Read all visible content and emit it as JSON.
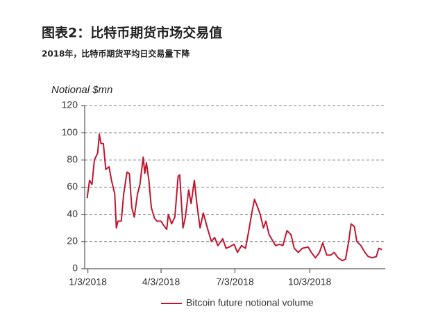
{
  "chart_data": {
    "type": "line",
    "title": "图表2：比特币期货市场交易值",
    "subtitle": "2018年，比特币期货平均日交易量下降",
    "y_label": "Notional $mn",
    "x": [
      "2018-01-02",
      "2018-01-05",
      "2018-01-08",
      "2018-01-11",
      "2018-01-15",
      "2018-01-17",
      "2018-01-19",
      "2018-01-22",
      "2018-01-25",
      "2018-01-29",
      "2018-02-01",
      "2018-02-05",
      "2018-02-07",
      "2018-02-09",
      "2018-02-13",
      "2018-02-16",
      "2018-02-20",
      "2018-02-23",
      "2018-02-26",
      "2018-03-01",
      "2018-03-05",
      "2018-03-08",
      "2018-03-12",
      "2018-03-14",
      "2018-03-16",
      "2018-03-19",
      "2018-03-22",
      "2018-03-26",
      "2018-03-29",
      "2018-04-03",
      "2018-04-06",
      "2018-04-10",
      "2018-04-12",
      "2018-04-16",
      "2018-04-20",
      "2018-04-24",
      "2018-04-26",
      "2018-04-30",
      "2018-05-03",
      "2018-05-07",
      "2018-05-10",
      "2018-05-14",
      "2018-05-17",
      "2018-05-21",
      "2018-05-25",
      "2018-05-30",
      "2018-06-04",
      "2018-06-08",
      "2018-06-12",
      "2018-06-18",
      "2018-06-22",
      "2018-06-26",
      "2018-07-02",
      "2018-07-06",
      "2018-07-11",
      "2018-07-16",
      "2018-07-20",
      "2018-07-24",
      "2018-07-27",
      "2018-07-31",
      "2018-08-03",
      "2018-08-07",
      "2018-08-10",
      "2018-08-14",
      "2018-08-17",
      "2018-08-22",
      "2018-08-27",
      "2018-08-31",
      "2018-09-05",
      "2018-09-10",
      "2018-09-14",
      "2018-09-19",
      "2018-09-24",
      "2018-10-01",
      "2018-10-05",
      "2018-10-10",
      "2018-10-15",
      "2018-10-19",
      "2018-10-24",
      "2018-10-29",
      "2018-11-02",
      "2018-11-07",
      "2018-11-12",
      "2018-11-16",
      "2018-11-20",
      "2018-11-23",
      "2018-11-27",
      "2018-11-30",
      "2018-12-05",
      "2018-12-10",
      "2018-12-14",
      "2018-12-19",
      "2018-12-24",
      "2018-12-27",
      "2018-12-31"
    ],
    "series": [
      {
        "name": "Bitcoin future notional volume",
        "color": "#c0152f",
        "values": [
          52,
          65,
          62,
          80,
          85,
          99,
          92,
          92,
          73,
          75,
          65,
          55,
          30,
          35,
          35,
          55,
          71,
          70,
          45,
          38,
          55,
          62,
          82,
          70,
          78,
          65,
          45,
          37,
          35,
          35,
          32,
          29,
          40,
          33,
          38,
          68,
          69,
          30,
          38,
          58,
          48,
          65,
          48,
          30,
          41,
          30,
          20,
          23,
          17,
          22,
          15,
          16,
          18,
          12,
          17,
          15,
          28,
          42,
          51,
          45,
          40,
          30,
          35,
          25,
          22,
          17,
          18,
          17,
          28,
          25,
          15,
          12,
          15,
          16,
          12,
          8,
          12,
          19,
          10,
          10,
          12,
          8,
          6,
          7,
          20,
          33,
          31,
          20,
          17,
          12,
          9,
          8,
          9,
          15,
          14
        ]
      }
    ],
    "xlim": [
      "2017-12-30",
      "2019-01-04"
    ],
    "xticks": [
      {
        "value": "2018-01-03",
        "label": "1/3/2018"
      },
      {
        "value": "2018-04-03",
        "label": "4/3/2018"
      },
      {
        "value": "2018-07-03",
        "label": "7/3/2018"
      },
      {
        "value": "2018-10-03",
        "label": "10/3/2018"
      }
    ],
    "ylim": [
      0,
      120
    ],
    "yticks": [
      0,
      20,
      40,
      60,
      80,
      100,
      120
    ],
    "grid": true
  }
}
